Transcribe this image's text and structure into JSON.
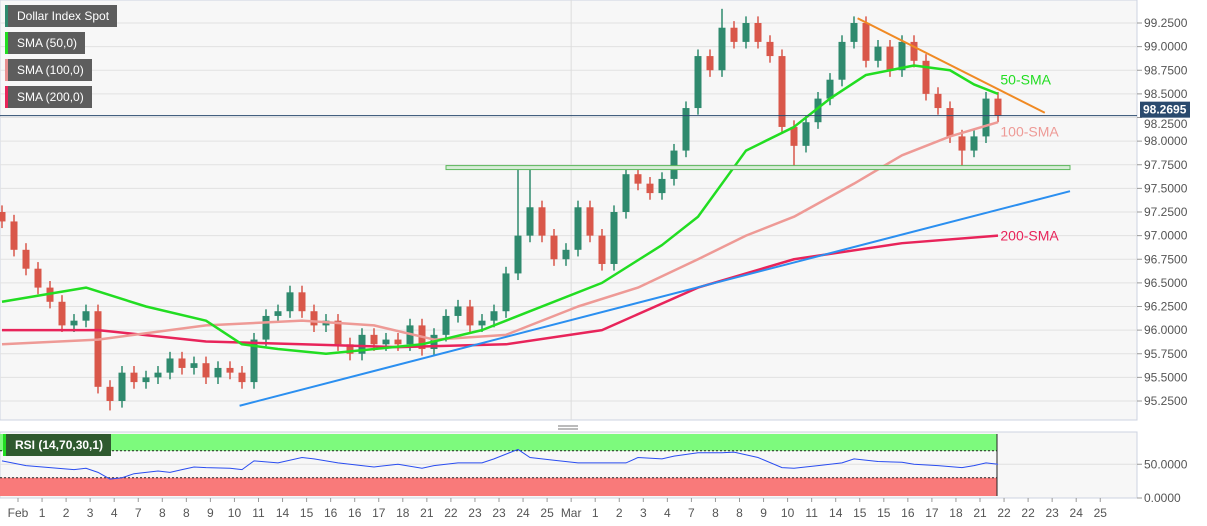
{
  "legends": [
    {
      "label": "Dollar Index Spot",
      "color": "#2f8a6e"
    },
    {
      "label": "SMA (50,0)",
      "color": "#22dd22"
    },
    {
      "label": "SMA (100,0)",
      "color": "#e89090"
    },
    {
      "label": "SMA (200,0)",
      "color": "#e8245a"
    }
  ],
  "rsi_legend": "RSI (14,70,30,1)",
  "chart_data": {
    "type": "candlestick",
    "title": "Dollar Index Spot",
    "ylim": [
      95.05,
      99.55
    ],
    "yticks": [
      "99.2500",
      "99.0000",
      "98.7500",
      "98.5000",
      "98.2500",
      "98.0000",
      "97.7500",
      "97.5000",
      "97.2500",
      "97.0000",
      "96.7500",
      "96.5000",
      "96.2500",
      "96.0000",
      "95.7500",
      "95.5000",
      "95.2500"
    ],
    "last_price": "98.2695",
    "xticks": [
      "Feb",
      "1",
      "2",
      "3",
      "4",
      "7",
      "8",
      "8",
      "9",
      "10",
      "11",
      "14",
      "15",
      "16",
      "16",
      "17",
      "18",
      "21",
      "22",
      "23",
      "23",
      "24",
      "25",
      "Mar",
      "1",
      "2",
      "3",
      "4",
      "7",
      "8",
      "8",
      "9",
      "10",
      "11",
      "14",
      "15",
      "15",
      "16",
      "17",
      "18",
      "21",
      "22",
      "22",
      "23",
      "24",
      "25"
    ],
    "colors": {
      "up": "#2f8a6e",
      "down": "#d9574a",
      "sma50": "#22dd22",
      "sma100": "#ee9a96",
      "sma200": "#e8245a",
      "trend_support": "#2b8ff0",
      "trend_resistance": "#f08a24",
      "horizontal": "#5cb85c",
      "last": "#2a4a6e"
    },
    "closes": [
      97.15,
      96.85,
      96.65,
      96.45,
      96.3,
      96.05,
      96.1,
      96.2,
      95.4,
      95.25,
      95.55,
      95.45,
      95.5,
      95.55,
      95.7,
      95.6,
      95.65,
      95.5,
      95.6,
      95.55,
      95.45,
      95.9,
      96.15,
      96.2,
      96.4,
      96.2,
      96.05,
      96.1,
      95.85,
      95.75,
      95.95,
      95.85,
      95.9,
      95.85,
      96.05,
      95.8,
      95.95,
      96.15,
      96.25,
      96.05,
      96.1,
      96.2,
      96.6,
      97.0,
      97.3,
      97.0,
      96.75,
      96.85,
      97.3,
      97.0,
      96.7,
      97.25,
      97.65,
      97.55,
      97.45,
      97.6,
      97.9,
      98.35,
      98.9,
      98.75,
      99.2,
      99.05,
      99.25,
      99.05,
      98.9,
      98.15,
      97.95,
      98.2,
      98.45,
      98.65,
      99.05,
      99.25,
      98.85,
      99.0,
      98.75,
      99.05,
      98.85,
      98.5,
      98.35,
      98.05,
      97.9,
      98.05,
      98.45,
      98.27
    ],
    "wick_overrides": {
      "43": {
        "h": 97.72
      },
      "44": {
        "h": 97.72
      },
      "60": {
        "h": 99.4
      },
      "66": {
        "l": 97.72
      },
      "80": {
        "l": 97.72
      },
      "9": {
        "l": 95.15
      }
    },
    "sma50": [
      [
        0,
        96.3
      ],
      [
        7,
        96.45
      ],
      [
        12,
        96.25
      ],
      [
        17,
        96.1
      ],
      [
        20,
        95.85
      ],
      [
        23,
        95.8
      ],
      [
        27,
        95.75
      ],
      [
        35,
        95.85
      ],
      [
        40,
        96.0
      ],
      [
        44,
        96.2
      ],
      [
        50,
        96.5
      ],
      [
        55,
        96.9
      ],
      [
        58,
        97.2
      ],
      [
        62,
        97.9
      ],
      [
        66,
        98.15
      ],
      [
        69,
        98.45
      ],
      [
        72,
        98.7
      ],
      [
        76,
        98.8
      ],
      [
        79,
        98.75
      ],
      [
        81,
        98.6
      ],
      [
        83,
        98.5
      ]
    ],
    "sma100": [
      [
        0,
        95.85
      ],
      [
        8,
        95.9
      ],
      [
        17,
        96.05
      ],
      [
        25,
        96.1
      ],
      [
        31,
        96.05
      ],
      [
        36,
        95.9
      ],
      [
        42,
        95.95
      ],
      [
        48,
        96.25
      ],
      [
        53,
        96.45
      ],
      [
        58,
        96.75
      ],
      [
        62,
        97.0
      ],
      [
        66,
        97.2
      ],
      [
        71,
        97.55
      ],
      [
        75,
        97.85
      ],
      [
        79,
        98.05
      ],
      [
        83,
        98.2
      ]
    ],
    "sma200": [
      [
        0,
        96.0
      ],
      [
        8,
        96.0
      ],
      [
        17,
        95.88
      ],
      [
        25,
        95.85
      ],
      [
        33,
        95.82
      ],
      [
        42,
        95.85
      ],
      [
        50,
        96.0
      ],
      [
        58,
        96.45
      ],
      [
        66,
        96.75
      ],
      [
        75,
        96.92
      ],
      [
        83,
        97.0
      ]
    ],
    "trendlines": [
      {
        "name": "support",
        "from": [
          19.8,
          95.2
        ],
        "to": [
          89,
          97.47
        ]
      },
      {
        "name": "resistance",
        "from": [
          71.3,
          99.3
        ],
        "to": [
          86.9,
          98.3
        ]
      },
      {
        "name": "horizontal",
        "from": [
          37,
          97.72
        ],
        "to": [
          89,
          97.72
        ]
      }
    ],
    "annotations": [
      {
        "text": "50-SMA",
        "at": [
          83.2,
          98.6
        ],
        "color": "#22dd22"
      },
      {
        "text": "100-SMA",
        "at": [
          83.2,
          98.05
        ],
        "color": "#ee9a96"
      },
      {
        "text": "200-SMA",
        "at": [
          83.2,
          96.95
        ],
        "color": "#e8245a"
      }
    ],
    "rsi": {
      "ylim": [
        0,
        100
      ],
      "overbought": 70,
      "oversold": 30,
      "yticks": [
        "50.0000",
        "0.0000"
      ],
      "values": [
        [
          0,
          55
        ],
        [
          2,
          48
        ],
        [
          4,
          45
        ],
        [
          6,
          42
        ],
        [
          7,
          44
        ],
        [
          8,
          38
        ],
        [
          9,
          28
        ],
        [
          10,
          30
        ],
        [
          11,
          36
        ],
        [
          13,
          40
        ],
        [
          14,
          38
        ],
        [
          15,
          42
        ],
        [
          16,
          46
        ],
        [
          17,
          45
        ],
        [
          19,
          44
        ],
        [
          20,
          42
        ],
        [
          21,
          55
        ],
        [
          23,
          52
        ],
        [
          25,
          60
        ],
        [
          26,
          58
        ],
        [
          28,
          52
        ],
        [
          30,
          48
        ],
        [
          31,
          46
        ],
        [
          33,
          50
        ],
        [
          35,
          44
        ],
        [
          36,
          48
        ],
        [
          38,
          52
        ],
        [
          40,
          52
        ],
        [
          41,
          58
        ],
        [
          43,
          72
        ],
        [
          44,
          60
        ],
        [
          46,
          56
        ],
        [
          48,
          52
        ],
        [
          50,
          52
        ],
        [
          52,
          52
        ],
        [
          53,
          60
        ],
        [
          55,
          58
        ],
        [
          56,
          62
        ],
        [
          58,
          67
        ],
        [
          60,
          67
        ],
        [
          61,
          68
        ],
        [
          63,
          60
        ],
        [
          65,
          45
        ],
        [
          66,
          44
        ],
        [
          68,
          48
        ],
        [
          70,
          52
        ],
        [
          71,
          58
        ],
        [
          73,
          54
        ],
        [
          75,
          53
        ],
        [
          76,
          50
        ],
        [
          78,
          48
        ],
        [
          80,
          45
        ],
        [
          81,
          48
        ],
        [
          82,
          52
        ],
        [
          83,
          50
        ]
      ]
    }
  }
}
